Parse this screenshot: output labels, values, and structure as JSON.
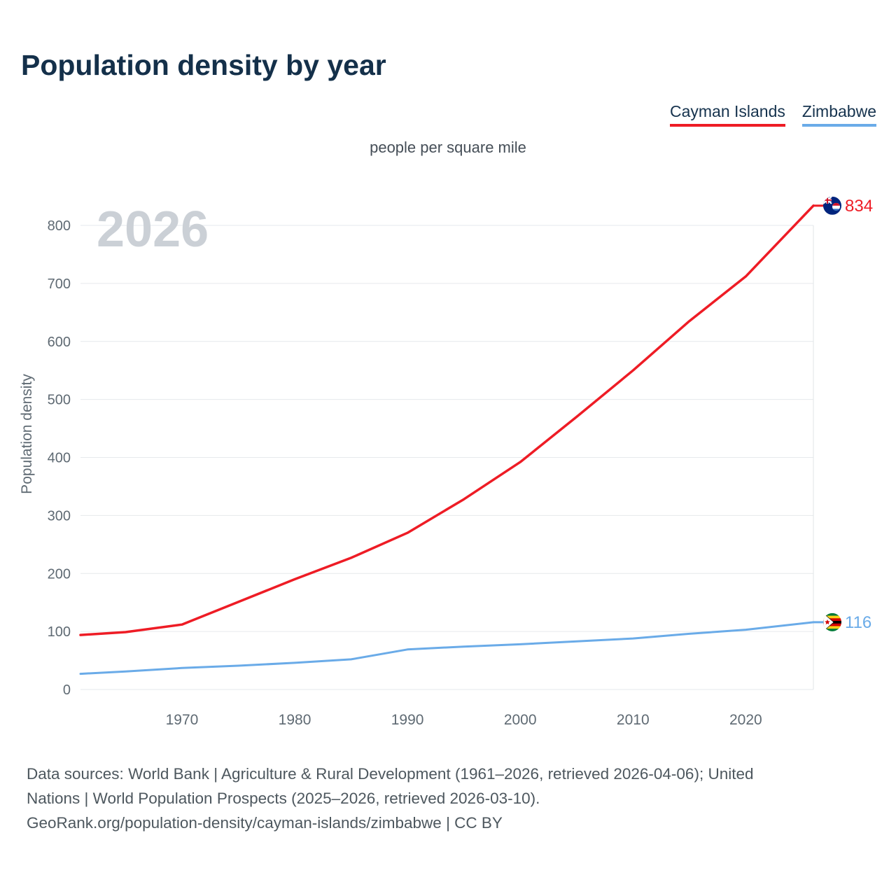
{
  "page": {
    "title": "Population density by year",
    "subtitle": "people per square mile",
    "watermark": "2026",
    "footer_lines": [
      "Data sources: World Bank | Agriculture & Rural Development (1961–2026, retrieved 2026-04-06); United",
      "Nations | World Population Prospects (2025–2026, retrieved 2026-03-10).",
      "GeoRank.org/population-density/cayman-islands/zimbabwe | CC BY"
    ]
  },
  "legend": [
    {
      "label": "Cayman Islands",
      "color": "#ee1c25"
    },
    {
      "label": "Zimbabwe",
      "color": "#6aabe8"
    }
  ],
  "chart_data": {
    "type": "line",
    "title": "Population density by year",
    "subtitle": "people per square mile",
    "xlabel": "",
    "ylabel": "Population density",
    "units": "people per square mile",
    "watermark_year": "2026",
    "grid": "horizontal",
    "legend_position": "top-right",
    "xlim": [
      1961,
      2026
    ],
    "ylim": [
      0,
      870
    ],
    "xticks": [
      1970,
      1980,
      1990,
      2000,
      2010,
      2020
    ],
    "yticks": [
      0,
      100,
      200,
      300,
      400,
      500,
      600,
      700,
      800
    ],
    "x": [
      1961,
      1965,
      1970,
      1975,
      1980,
      1985,
      1990,
      1995,
      2000,
      2005,
      2010,
      2015,
      2020,
      2026
    ],
    "series": [
      {
        "name": "Cayman Islands",
        "color": "#ee1c25",
        "flag": "cayman-islands",
        "end_label": "834",
        "end_value": 834,
        "values": [
          94,
          99,
          112,
          151,
          190,
          227,
          270,
          328,
          392,
          470,
          550,
          635,
          712,
          834
        ]
      },
      {
        "name": "Zimbabwe",
        "color": "#6aabe8",
        "flag": "zimbabwe",
        "end_label": "116",
        "end_value": 116,
        "values": [
          27,
          31,
          37,
          41,
          46,
          52,
          69,
          74,
          78,
          83,
          88,
          96,
          103,
          116
        ]
      }
    ]
  }
}
